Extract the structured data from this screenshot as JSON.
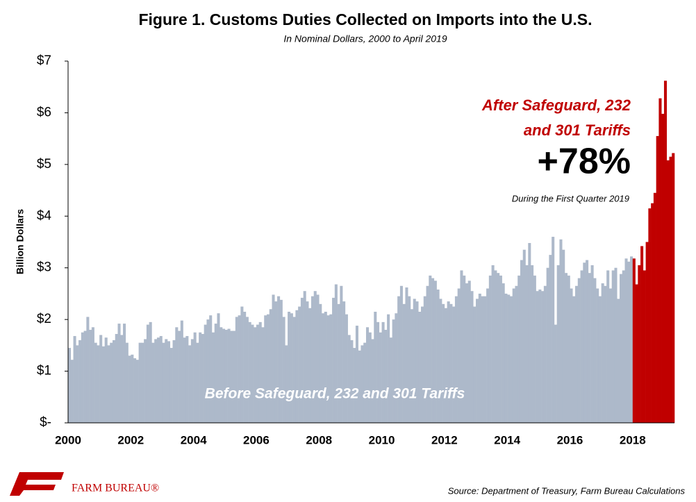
{
  "chart_data": {
    "type": "bar",
    "title": "Figure 1. Customs Duties Collected on Imports into the U.S.",
    "subtitle": "In Nominal Dollars, 2000 to April 2019",
    "y_label": "Billion Dollars",
    "annotations": [
      "After Safeguard, 232",
      "and 301 Tariffs",
      "+78%",
      "During the First Quarter 2019",
      "Before Safeguard, 232 and 301 Tariffs"
    ],
    "source": "Source: Department of Treasury, Farm Bureau Calculations",
    "logo_text": "FARM BUREAU®",
    "ylim": [
      0,
      7
    ],
    "yticks": [
      {
        "value": 0,
        "label": "$-"
      },
      {
        "value": 1,
        "label": "$1"
      },
      {
        "value": 2,
        "label": "$2"
      },
      {
        "value": 3,
        "label": "$3"
      },
      {
        "value": 4,
        "label": "$4"
      },
      {
        "value": 5,
        "label": "$5"
      },
      {
        "value": 6,
        "label": "$6"
      },
      {
        "value": 7,
        "label": "$7"
      }
    ],
    "categories": [
      "2000",
      null,
      null,
      null,
      null,
      null,
      null,
      null,
      null,
      null,
      null,
      null,
      null,
      null,
      null,
      null,
      null,
      null,
      null,
      null,
      null,
      null,
      null,
      null,
      "2002",
      null,
      null,
      null,
      null,
      null,
      null,
      null,
      null,
      null,
      null,
      null,
      null,
      null,
      null,
      null,
      null,
      null,
      null,
      null,
      null,
      null,
      null,
      null,
      "2004",
      null,
      null,
      null,
      null,
      null,
      null,
      null,
      null,
      null,
      null,
      null,
      null,
      null,
      null,
      null,
      null,
      null,
      null,
      null,
      null,
      null,
      null,
      null,
      "2006",
      null,
      null,
      null,
      null,
      null,
      null,
      null,
      null,
      null,
      null,
      null,
      null,
      null,
      null,
      null,
      null,
      null,
      null,
      null,
      null,
      null,
      null,
      null,
      "2008",
      null,
      null,
      null,
      null,
      null,
      null,
      null,
      null,
      null,
      null,
      null,
      null,
      null,
      null,
      null,
      null,
      null,
      null,
      null,
      null,
      null,
      null,
      null,
      "2010",
      null,
      null,
      null,
      null,
      null,
      null,
      null,
      null,
      null,
      null,
      null,
      null,
      null,
      null,
      null,
      null,
      null,
      null,
      null,
      null,
      null,
      null,
      null,
      "2012",
      null,
      null,
      null,
      null,
      null,
      null,
      null,
      null,
      null,
      null,
      null,
      null,
      null,
      null,
      null,
      null,
      null,
      null,
      null,
      null,
      null,
      null,
      null,
      "2014",
      null,
      null,
      null,
      null,
      null,
      null,
      null,
      null,
      null,
      null,
      null,
      null,
      null,
      null,
      null,
      null,
      null,
      null,
      null,
      null,
      null,
      null,
      null,
      "2016",
      null,
      null,
      null,
      null,
      null,
      null,
      null,
      null,
      null,
      null,
      null,
      null,
      null,
      null,
      null,
      null,
      null,
      null,
      null,
      null,
      null,
      null,
      null,
      "2018",
      null,
      null,
      null,
      null,
      null,
      null,
      null,
      null,
      null,
      null,
      null,
      null,
      null,
      null,
      null
    ],
    "series": [
      {
        "color": "#adb9ca",
        "values": [
          1.45,
          1.22,
          1.68,
          1.5,
          1.6,
          1.75,
          1.78,
          2.05,
          1.8,
          1.85,
          1.55,
          1.5,
          1.7,
          1.48,
          1.65,
          1.5,
          1.55,
          1.6,
          1.72,
          1.92,
          1.7,
          1.92,
          1.55,
          1.3,
          1.32,
          1.25,
          1.22,
          1.55,
          1.55,
          1.62,
          1.9,
          1.95,
          1.55,
          1.62,
          1.65,
          1.68,
          1.55,
          1.62,
          1.58,
          1.45,
          1.6,
          1.85,
          1.78,
          1.98,
          1.65,
          1.68,
          1.5,
          1.62,
          1.75,
          1.55,
          1.75,
          1.72,
          1.9,
          2.0,
          2.08,
          1.75,
          1.92,
          2.12,
          1.85,
          1.82,
          1.8,
          1.82,
          1.78,
          1.78,
          2.05,
          2.08,
          2.25,
          2.15,
          2.05,
          1.95,
          1.9,
          1.85,
          1.9,
          1.95,
          1.85,
          2.08,
          2.1,
          2.2,
          2.48,
          2.35,
          2.45,
          2.38,
          2.05,
          1.5,
          2.15,
          2.12,
          2.05,
          2.18,
          2.25,
          2.42,
          2.55,
          2.35,
          2.22,
          2.45,
          2.55,
          2.48,
          2.3,
          2.12,
          2.15,
          2.08,
          2.1,
          2.42,
          2.68,
          2.3,
          2.65,
          2.35,
          2.1,
          1.7,
          1.6,
          1.45,
          1.88,
          1.4,
          1.5,
          1.55,
          1.85,
          1.75,
          1.62,
          2.15,
          1.95,
          1.75,
          1.95,
          1.8,
          2.1,
          1.65,
          2.0,
          2.12,
          2.45,
          2.65,
          2.3,
          2.62,
          2.45,
          2.2,
          2.4,
          2.35,
          2.15,
          2.25,
          2.45,
          2.65,
          2.85,
          2.8,
          2.75,
          2.58,
          2.4,
          2.3,
          2.22,
          2.35,
          2.3,
          2.25,
          2.45,
          2.6,
          2.95,
          2.85,
          2.7,
          2.75,
          2.55,
          2.25,
          2.4,
          2.5,
          2.45,
          2.45,
          2.6,
          2.85,
          3.05,
          2.95,
          2.9,
          2.85,
          2.7,
          2.5,
          2.48,
          2.45,
          2.6,
          2.65,
          2.85,
          3.15,
          3.35,
          3.05,
          3.48,
          3.05,
          2.85,
          2.55,
          2.58,
          2.55,
          2.65,
          3.0,
          3.25,
          3.6,
          1.9,
          3.05,
          3.55,
          3.35,
          2.9,
          2.85,
          2.6,
          2.45,
          2.65,
          2.8,
          2.95,
          3.1,
          3.15,
          2.9,
          3.05,
          2.8,
          2.6,
          2.45,
          2.7,
          2.65,
          2.95,
          2.6,
          2.95,
          3.0,
          2.4,
          2.88,
          2.95,
          3.18,
          3.12,
          3.22,
          null,
          null,
          null,
          null,
          null,
          null,
          null,
          null,
          null,
          null,
          null,
          null,
          null,
          null,
          null,
          null
        ]
      },
      {
        "color": "#c00000",
        "values": [
          null,
          null,
          null,
          null,
          null,
          null,
          null,
          null,
          null,
          null,
          null,
          null,
          null,
          null,
          null,
          null,
          null,
          null,
          null,
          null,
          null,
          null,
          null,
          null,
          null,
          null,
          null,
          null,
          null,
          null,
          null,
          null,
          null,
          null,
          null,
          null,
          null,
          null,
          null,
          null,
          null,
          null,
          null,
          null,
          null,
          null,
          null,
          null,
          null,
          null,
          null,
          null,
          null,
          null,
          null,
          null,
          null,
          null,
          null,
          null,
          null,
          null,
          null,
          null,
          null,
          null,
          null,
          null,
          null,
          null,
          null,
          null,
          null,
          null,
          null,
          null,
          null,
          null,
          null,
          null,
          null,
          null,
          null,
          null,
          null,
          null,
          null,
          null,
          null,
          null,
          null,
          null,
          null,
          null,
          null,
          null,
          null,
          null,
          null,
          null,
          null,
          null,
          null,
          null,
          null,
          null,
          null,
          null,
          null,
          null,
          null,
          null,
          null,
          null,
          null,
          null,
          null,
          null,
          null,
          null,
          null,
          null,
          null,
          null,
          null,
          null,
          null,
          null,
          null,
          null,
          null,
          null,
          null,
          null,
          null,
          null,
          null,
          null,
          null,
          null,
          null,
          null,
          null,
          null,
          null,
          null,
          null,
          null,
          null,
          null,
          null,
          null,
          null,
          null,
          null,
          null,
          null,
          null,
          null,
          null,
          null,
          null,
          null,
          null,
          null,
          null,
          null,
          null,
          null,
          null,
          null,
          null,
          null,
          null,
          null,
          null,
          null,
          null,
          null,
          null,
          null,
          null,
          null,
          null,
          null,
          null,
          null,
          null,
          null,
          null,
          null,
          null,
          null,
          null,
          null,
          null,
          null,
          null,
          null,
          null,
          null,
          null,
          null,
          null,
          null,
          null,
          null,
          null,
          null,
          null,
          null,
          null,
          null,
          null,
          null,
          null,
          3.18,
          2.68,
          3.05,
          3.42,
          2.95,
          3.5,
          4.15,
          4.25,
          4.45,
          5.55,
          6.28,
          5.98,
          6.62,
          5.08,
          5.15,
          5.22
        ]
      }
    ]
  }
}
